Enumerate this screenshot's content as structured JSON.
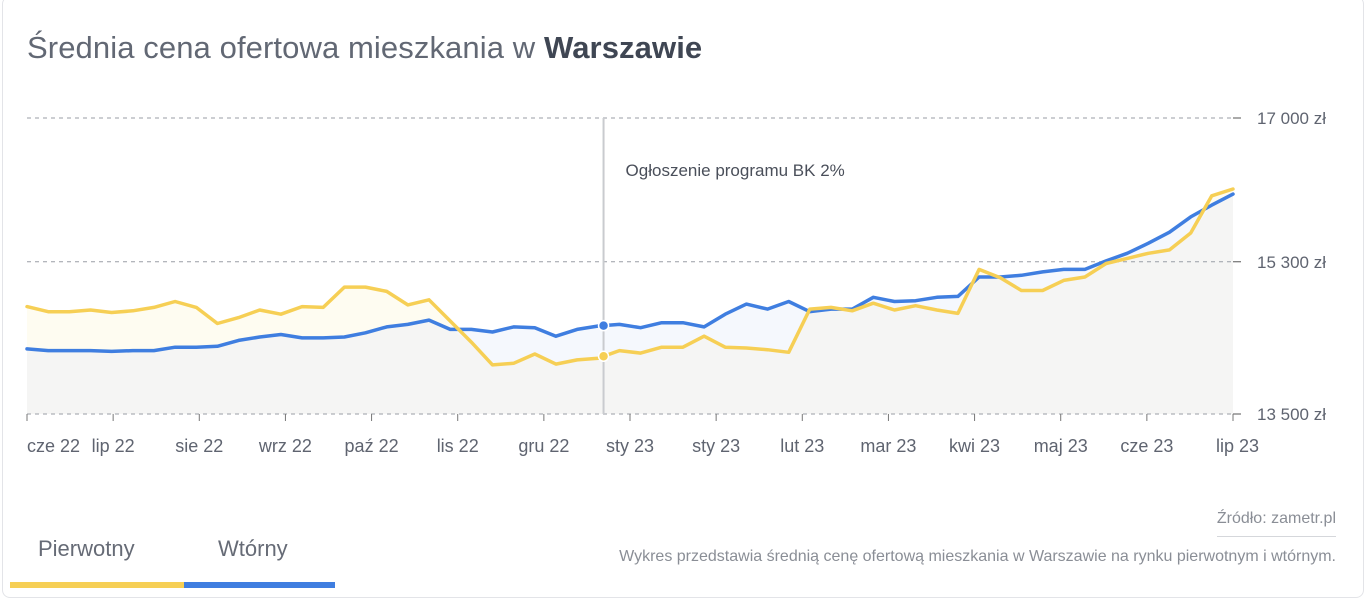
{
  "title": {
    "prefix": "Średnia cena ofertowa mieszkania w",
    "city": "Warszawie"
  },
  "colors": {
    "pierwotny": "#f6cf55",
    "wtorny": "#3f7ee0",
    "grid": "#9a9ea6",
    "event_line": "#c9cbcf"
  },
  "tabs": [
    {
      "label": "Pierwotny",
      "color": "#f6cf55"
    },
    {
      "label": "Wtórny",
      "color": "#3f7ee0"
    }
  ],
  "footer": {
    "source": "Źródło: zametr.pl",
    "description": "Wykres przedstawia średnią cenę ofertową mieszkania w Warszawie na rynku pierwotnym i wtórnym."
  },
  "chart_data": {
    "type": "line",
    "title": "Średnia cena ofertowa mieszkania w Warszawie",
    "xlabel": "",
    "ylabel": "",
    "ylim": [
      13500,
      17000
    ],
    "yticks": [
      13500,
      15300,
      17000
    ],
    "ytick_labels": [
      "13 500 zł",
      "15 300 zł",
      "17 000 zł"
    ],
    "xtick_labels": [
      "cze 22",
      "lip 22",
      "sie 22",
      "wrz 22",
      "paź 22",
      "lis 22",
      "gru 22",
      "sty 23",
      "sty 23",
      "lut 23",
      "mar 23",
      "kwi 23",
      "maj 23",
      "cze 23",
      "lip 23"
    ],
    "grid": true,
    "legend": "bottom-left tabs",
    "annotation": {
      "label": "Ogłoszenie programu BK 2%",
      "index": 27
    },
    "series": [
      {
        "name": "Pierwotny",
        "color": "#f6cf55",
        "values": [
          14770,
          14710,
          14710,
          14730,
          14700,
          14720,
          14760,
          14830,
          14760,
          14570,
          14640,
          14730,
          14680,
          14770,
          14760,
          15000,
          15000,
          14950,
          14790,
          14850,
          14600,
          14350,
          14080,
          14100,
          14210,
          14090,
          14140,
          14160,
          14250,
          14220,
          14290,
          14290,
          14420,
          14290,
          14280,
          14260,
          14230,
          14740,
          14760,
          14720,
          14810,
          14730,
          14780,
          14730,
          14690,
          15210,
          15110,
          14960,
          14960,
          15080,
          15120,
          15280,
          15340,
          15400,
          15440,
          15640,
          16080,
          16160
        ]
      },
      {
        "name": "Wtórny",
        "color": "#3f7ee0",
        "values": [
          14270,
          14250,
          14250,
          14250,
          14240,
          14250,
          14250,
          14290,
          14290,
          14300,
          14370,
          14410,
          14440,
          14400,
          14400,
          14410,
          14460,
          14530,
          14560,
          14610,
          14500,
          14500,
          14470,
          14530,
          14520,
          14420,
          14500,
          14540,
          14560,
          14520,
          14580,
          14580,
          14530,
          14680,
          14800,
          14740,
          14830,
          14710,
          14740,
          14740,
          14880,
          14830,
          14840,
          14880,
          14890,
          15120,
          15120,
          15140,
          15180,
          15210,
          15210,
          15310,
          15400,
          15520,
          15650,
          15830,
          15970,
          16100
        ]
      }
    ]
  }
}
